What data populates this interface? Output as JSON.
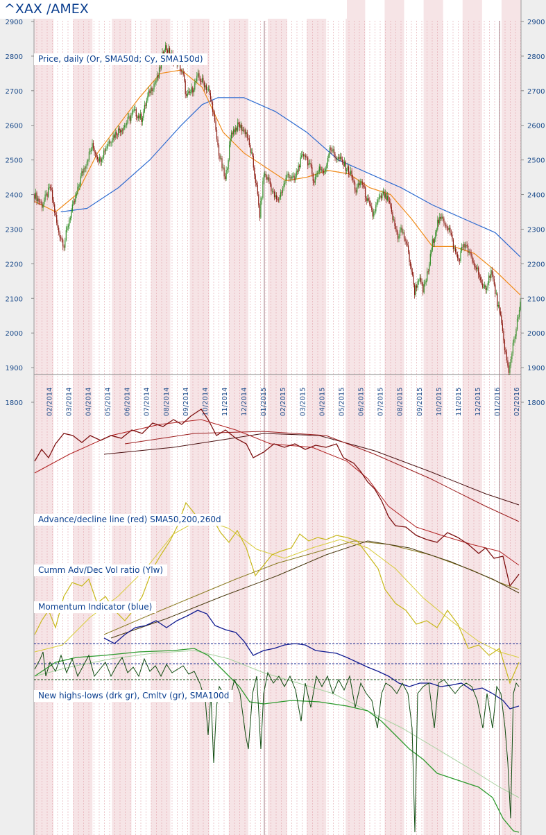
{
  "title": "^XAX /AMEX",
  "panels": {
    "price_label": "Price, daily (Or, SMA50d; Cy, SMA150d)",
    "ad_label": "Advance/decline line (red) SMA50,200,260d",
    "vol_label": "Cumm Adv/Dec Vol ratio (Ylw)",
    "mom_label": "Momentum Indicator (blue)",
    "nhl_label": "New highs-lows (drk gr), Cmltv (gr), SMA100d"
  },
  "colors": {
    "background": "#eeeeee",
    "plot_bg": "#ffffff",
    "month_band": "#f6e4e6",
    "grid_line": "#e2a3ab",
    "price_up": "#2e8b22",
    "price_down": "#8b1a10",
    "sma50": "#f08a18",
    "sma150": "#2c6ad0",
    "ad_line": "#7d0e0e",
    "ad_sma": "#b02020",
    "vol_ratio": "#c8b81a",
    "momentum": "#101a90",
    "nhl": "#0e4a0e",
    "nhl_cum": "#2d9a2d"
  },
  "chart_data": {
    "type": "line",
    "x_ticks": [
      "02/2014",
      "03/2014",
      "04/2014",
      "05/2014",
      "06/2014",
      "07/2014",
      "08/2014",
      "09/2014",
      "10/2014",
      "11/2014",
      "12/2014",
      "01/2015",
      "02/2015",
      "03/2015",
      "04/2015",
      "05/2015",
      "06/2015",
      "07/2015",
      "08/2015",
      "09/2015",
      "10/2015",
      "11/2015",
      "12/2015",
      "01/2016",
      "02/2016"
    ],
    "y_ticks": [
      1800,
      1900,
      2000,
      2100,
      2200,
      2300,
      2400,
      2500,
      2600,
      2700,
      2800,
      2900
    ],
    "ylim": [
      1800,
      2900
    ],
    "price_path": [
      [
        0,
        2400
      ],
      [
        7,
        2370
      ],
      [
        15,
        2420
      ],
      [
        22,
        2300
      ],
      [
        28,
        2255
      ],
      [
        33,
        2330
      ],
      [
        40,
        2400
      ],
      [
        45,
        2460
      ],
      [
        55,
        2540
      ],
      [
        62,
        2500
      ],
      [
        70,
        2550
      ],
      [
        78,
        2580
      ],
      [
        86,
        2600
      ],
      [
        95,
        2640
      ],
      [
        102,
        2620
      ],
      [
        110,
        2700
      ],
      [
        118,
        2740
      ],
      [
        124,
        2830
      ],
      [
        131,
        2800
      ],
      [
        137,
        2780
      ],
      [
        142,
        2740
      ],
      [
        145,
        2680
      ],
      [
        150,
        2700
      ],
      [
        156,
        2740
      ],
      [
        162,
        2720
      ],
      [
        166,
        2700
      ],
      [
        170,
        2650
      ],
      [
        173,
        2580
      ],
      [
        176,
        2520
      ],
      [
        182,
        2440
      ],
      [
        188,
        2580
      ],
      [
        195,
        2600
      ],
      [
        202,
        2580
      ],
      [
        208,
        2500
      ],
      [
        212,
        2420
      ],
      [
        215,
        2340
      ],
      [
        219,
        2460
      ],
      [
        224,
        2440
      ],
      [
        228,
        2400
      ],
      [
        232,
        2380
      ],
      [
        237,
        2420
      ],
      [
        242,
        2460
      ],
      [
        248,
        2440
      ],
      [
        253,
        2490
      ],
      [
        258,
        2520
      ],
      [
        263,
        2480
      ],
      [
        267,
        2440
      ],
      [
        272,
        2480
      ],
      [
        277,
        2460
      ],
      [
        282,
        2540
      ],
      [
        287,
        2510
      ],
      [
        292,
        2500
      ],
      [
        297,
        2480
      ],
      [
        302,
        2460
      ],
      [
        307,
        2410
      ],
      [
        312,
        2440
      ],
      [
        318,
        2380
      ],
      [
        323,
        2340
      ],
      [
        328,
        2380
      ],
      [
        333,
        2400
      ],
      [
        338,
        2380
      ],
      [
        343,
        2320
      ],
      [
        347,
        2280
      ],
      [
        350,
        2300
      ],
      [
        355,
        2260
      ],
      [
        360,
        2180
      ],
      [
        363,
        2120
      ],
      [
        367,
        2160
      ],
      [
        371,
        2120
      ],
      [
        376,
        2180
      ],
      [
        380,
        2260
      ],
      [
        385,
        2320
      ],
      [
        390,
        2330
      ],
      [
        396,
        2300
      ],
      [
        401,
        2240
      ],
      [
        405,
        2210
      ],
      [
        410,
        2260
      ],
      [
        415,
        2230
      ],
      [
        419,
        2200
      ],
      [
        424,
        2180
      ],
      [
        428,
        2120
      ],
      [
        432,
        2140
      ],
      [
        436,
        2180
      ],
      [
        440,
        2120
      ],
      [
        445,
        2040
      ],
      [
        449,
        1960
      ],
      [
        453,
        1880
      ],
      [
        457,
        1970
      ],
      [
        461,
        2030
      ],
      [
        464,
        2080
      ]
    ],
    "sma50_path": [
      [
        0,
        2380
      ],
      [
        20,
        2350
      ],
      [
        40,
        2400
      ],
      [
        60,
        2520
      ],
      [
        80,
        2600
      ],
      [
        100,
        2680
      ],
      [
        120,
        2750
      ],
      [
        140,
        2760
      ],
      [
        160,
        2710
      ],
      [
        180,
        2580
      ],
      [
        200,
        2520
      ],
      [
        220,
        2480
      ],
      [
        240,
        2440
      ],
      [
        260,
        2450
      ],
      [
        280,
        2470
      ],
      [
        300,
        2460
      ],
      [
        320,
        2420
      ],
      [
        340,
        2400
      ],
      [
        360,
        2330
      ],
      [
        380,
        2250
      ],
      [
        400,
        2250
      ],
      [
        420,
        2230
      ],
      [
        440,
        2180
      ],
      [
        464,
        2110
      ]
    ],
    "sma150_path": [
      [
        25,
        2350
      ],
      [
        50,
        2360
      ],
      [
        80,
        2420
      ],
      [
        110,
        2500
      ],
      [
        140,
        2600
      ],
      [
        160,
        2660
      ],
      [
        175,
        2680
      ],
      [
        200,
        2680
      ],
      [
        230,
        2640
      ],
      [
        260,
        2580
      ],
      [
        290,
        2500
      ],
      [
        320,
        2460
      ],
      [
        350,
        2420
      ],
      [
        380,
        2370
      ],
      [
        410,
        2330
      ],
      [
        440,
        2290
      ],
      [
        464,
        2220
      ]
    ]
  }
}
